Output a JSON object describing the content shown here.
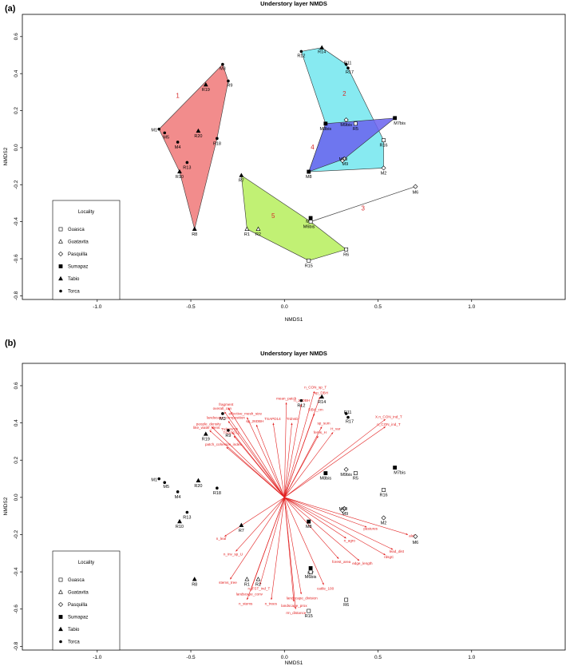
{
  "legend": {
    "title": "Locality",
    "entries": [
      {
        "name": "Guasca",
        "symbol": "open-square"
      },
      {
        "name": "Guatavita",
        "symbol": "open-triangle"
      },
      {
        "name": "Pasquilla",
        "symbol": "open-diamond"
      },
      {
        "name": "Sumapaz",
        "symbol": "filled-square"
      },
      {
        "name": "Tabio",
        "symbol": "filled-triangle"
      },
      {
        "name": "Torca",
        "symbol": "filled-circle"
      }
    ]
  },
  "chart_data": [
    {
      "panel_label": "(a)",
      "type": "scatter",
      "title": "Understory layer NMDS",
      "xlabel": "NMDS1",
      "ylabel": "NMDS2",
      "xlim": [
        -1.4,
        1.5
      ],
      "ylim": [
        -0.82,
        0.72
      ],
      "xticks": [
        "-1.0",
        "-0.5",
        "0.0",
        "0.5",
        "1.0"
      ],
      "yticks": [
        "-0.8",
        "-0.6",
        "-0.4",
        "-0.2",
        "0.0",
        "0.2",
        "0.4",
        "0.6"
      ],
      "points": [
        {
          "label": "M1",
          "x": -0.67,
          "y": 0.1,
          "locality": "Torca"
        },
        {
          "label": "M5",
          "x": -0.64,
          "y": 0.08,
          "locality": "Torca"
        },
        {
          "label": "M4",
          "x": -0.57,
          "y": 0.03,
          "locality": "Torca"
        },
        {
          "label": "R20",
          "x": -0.46,
          "y": 0.09,
          "locality": "Tabio"
        },
        {
          "label": "R18",
          "x": -0.36,
          "y": 0.05,
          "locality": "Torca"
        },
        {
          "label": "R13",
          "x": -0.52,
          "y": -0.08,
          "locality": "Torca"
        },
        {
          "label": "R10",
          "x": -0.56,
          "y": -0.13,
          "locality": "Tabio"
        },
        {
          "label": "R8",
          "x": -0.48,
          "y": -0.44,
          "locality": "Tabio"
        },
        {
          "label": "R19",
          "x": -0.42,
          "y": 0.34,
          "locality": "Tabio"
        },
        {
          "label": "M3",
          "x": -0.33,
          "y": 0.45,
          "locality": "Torca"
        },
        {
          "label": "R9",
          "x": -0.3,
          "y": 0.36,
          "locality": "Torca"
        },
        {
          "label": "R7",
          "x": -0.23,
          "y": -0.15,
          "locality": "Tabio"
        },
        {
          "label": "R1",
          "x": -0.2,
          "y": -0.44,
          "locality": "Guatavita"
        },
        {
          "label": "R2",
          "x": -0.14,
          "y": -0.44,
          "locality": "Guatavita"
        },
        {
          "label": "M7",
          "x": 0.14,
          "y": -0.38,
          "locality": "Sumapaz"
        },
        {
          "label": "M6bis",
          "x": 0.14,
          "y": -0.4,
          "locality": "Guasca"
        },
        {
          "label": "R6",
          "x": 0.33,
          "y": -0.55,
          "locality": "Guasca"
        },
        {
          "label": "R15",
          "x": 0.13,
          "y": -0.61,
          "locality": "Guasca"
        },
        {
          "label": "M6",
          "x": 0.7,
          "y": -0.21,
          "locality": "Pasquilla"
        },
        {
          "label": "R12",
          "x": 0.09,
          "y": 0.52,
          "locality": "Torca"
        },
        {
          "label": "R14",
          "x": 0.2,
          "y": 0.54,
          "locality": "Tabio"
        },
        {
          "label": "R11",
          "x": 0.33,
          "y": 0.45,
          "locality": "Torca"
        },
        {
          "label": "R17",
          "x": 0.34,
          "y": 0.43,
          "locality": "Torca"
        },
        {
          "label": "M8bis",
          "x": 0.22,
          "y": 0.13,
          "locality": "Sumapaz"
        },
        {
          "label": "M9bis",
          "x": 0.33,
          "y": 0.15,
          "locality": "Pasquilla"
        },
        {
          "label": "R5",
          "x": 0.38,
          "y": 0.13,
          "locality": "Guasca"
        },
        {
          "label": "M7bis",
          "x": 0.59,
          "y": 0.16,
          "locality": "Sumapaz"
        },
        {
          "label": "R16",
          "x": 0.53,
          "y": 0.04,
          "locality": "Guasca"
        },
        {
          "label": "M9",
          "x": 0.32,
          "y": -0.06,
          "locality": "Pasquilla"
        },
        {
          "label": "M10",
          "x": 0.31,
          "y": -0.07,
          "locality": "Pasquilla"
        },
        {
          "label": "M2",
          "x": 0.53,
          "y": -0.11,
          "locality": "Pasquilla"
        },
        {
          "label": "M8",
          "x": 0.13,
          "y": -0.13,
          "locality": "Sumapaz"
        }
      ],
      "hulls": [
        {
          "group": "1",
          "color": "#f07878",
          "vertices": [
            "M1",
            "M3",
            "R9",
            "R18",
            "R8",
            "R10"
          ]
        },
        {
          "group": "2",
          "color": "#72e6ee",
          "vertices": [
            "R12",
            "R14",
            "R11",
            "R16",
            "M2",
            "M8",
            "M8bis"
          ]
        },
        {
          "group": "4",
          "color": "#6a62ee",
          "vertices": [
            "M8bis",
            "M7bis",
            "M9",
            "M8"
          ]
        },
        {
          "group": "5",
          "color": "#b6ee5c",
          "vertices": [
            "R7",
            "M6bis",
            "R6",
            "R15",
            "R1"
          ]
        }
      ],
      "group_labels": [
        {
          "text": "1",
          "x": -0.57,
          "y": 0.27
        },
        {
          "text": "2",
          "x": 0.32,
          "y": 0.28
        },
        {
          "text": "4",
          "x": 0.15,
          "y": -0.01
        },
        {
          "text": "5",
          "x": -0.06,
          "y": -0.38
        },
        {
          "text": "3",
          "x": 0.42,
          "y": -0.34
        }
      ],
      "envfit_lines": [
        {
          "from": "M6bis",
          "to": "M6"
        },
        {
          "from": "M6bis",
          "to": "M7"
        }
      ]
    },
    {
      "panel_label": "(b)",
      "type": "scatter",
      "title": "Understory layer NMDS",
      "xlabel": "NMDS1",
      "ylabel": "NMDS2",
      "xlim": [
        -1.4,
        1.5
      ],
      "ylim": [
        -0.82,
        0.72
      ],
      "xticks": [
        "-1.0",
        "-0.5",
        "0.0",
        "0.5",
        "1.0"
      ],
      "yticks": [
        "-0.8",
        "-0.6",
        "-0.4",
        "-0.2",
        "0.0",
        "0.2",
        "0.4",
        "0.6"
      ],
      "vector_origin": [
        0,
        0
      ],
      "vectors": [
        {
          "label": "fragment",
          "x": -0.3,
          "y": 0.48
        },
        {
          "label": "overall_con",
          "x": -0.32,
          "y": 0.46
        },
        {
          "label": "effective_mesh_size",
          "x": -0.2,
          "y": 0.43
        },
        {
          "label": "landscape_composition",
          "x": -0.3,
          "y": 0.41
        },
        {
          "label": "people_density",
          "x": -0.39,
          "y": 0.38
        },
        {
          "label": "like_water_dens",
          "x": -0.4,
          "y": 0.36
        },
        {
          "label": "sp_26DBH",
          "x": -0.15,
          "y": 0.39
        },
        {
          "label": "TSAPDT1",
          "x": -0.27,
          "y": 0.33
        },
        {
          "label": "TrdnsNTD",
          "x": -0.28,
          "y": 0.35
        },
        {
          "label": "patch_cohesion_index",
          "x": -0.31,
          "y": 0.27
        },
        {
          "label": "mean_patch",
          "x": 0.01,
          "y": 0.51
        },
        {
          "label": "n_CON_sp_T",
          "x": 0.16,
          "y": 0.57
        },
        {
          "label": "n_26DBH",
          "x": 0.09,
          "y": 0.5
        },
        {
          "label": "sp_DBH",
          "x": 0.19,
          "y": 0.54
        },
        {
          "label": "DBH_cm",
          "x": 0.16,
          "y": 0.45
        },
        {
          "label": "TSAPD14",
          "x": -0.06,
          "y": 0.4
        },
        {
          "label": "TrdnsD",
          "x": 0.04,
          "y": 0.4
        },
        {
          "label": "sp_sum",
          "x": 0.2,
          "y": 0.38
        },
        {
          "label": "ferns_H",
          "x": 0.18,
          "y": 0.33
        },
        {
          "label": "H_var",
          "x": 0.26,
          "y": 0.35
        },
        {
          "label": "X.n_CON_ind_T",
          "x": 0.54,
          "y": 0.42
        },
        {
          "label": "n_CON_ind_T",
          "x": 0.54,
          "y": 0.38
        },
        {
          "label": "pastures",
          "x": 0.44,
          "y": -0.16
        },
        {
          "label": "alef",
          "x": 0.66,
          "y": -0.2
        },
        {
          "label": "n_agro",
          "x": 0.33,
          "y": -0.22
        },
        {
          "label": "lead_dist",
          "x": 0.58,
          "y": -0.28
        },
        {
          "label": "rdsgC",
          "x": 0.54,
          "y": -0.31
        },
        {
          "label": "edge_length",
          "x": 0.4,
          "y": -0.34
        },
        {
          "label": "forest_area",
          "x": 0.29,
          "y": -0.33
        },
        {
          "label": "cattle_100",
          "x": 0.21,
          "y": -0.47
        },
        {
          "label": "landscape_division",
          "x": 0.09,
          "y": -0.52
        },
        {
          "label": "landscape_prox",
          "x": 0.05,
          "y": -0.56
        },
        {
          "label": "rm_distance",
          "x": 0.06,
          "y": -0.6
        },
        {
          "label": "n_trees",
          "x": -0.07,
          "y": -0.55
        },
        {
          "label": "n_FST_ind_T",
          "x": -0.13,
          "y": -0.47
        },
        {
          "label": "landscape_conv",
          "x": -0.18,
          "y": -0.5
        },
        {
          "label": "n_stems",
          "x": -0.2,
          "y": -0.55
        },
        {
          "label": "stems_tree",
          "x": -0.29,
          "y": -0.44
        },
        {
          "label": "n_inv_sp_U",
          "x": -0.26,
          "y": -0.29
        },
        {
          "label": "n_leaf",
          "x": -0.32,
          "y": -0.21
        }
      ]
    }
  ]
}
